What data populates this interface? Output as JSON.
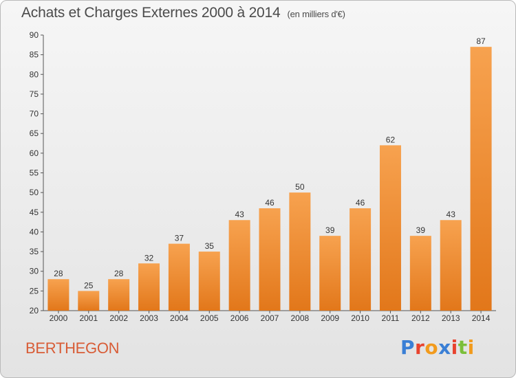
{
  "header": {
    "title": "Achats et Charges Externes 2000 à 2014",
    "unit": "(en milliers d'€)"
  },
  "footer": {
    "commune": "BERTHEGON",
    "logo": "Proxiti",
    "logo_colors": [
      "#3a7fd5",
      "#e8432e",
      "#f29b1d",
      "#3a7fd5",
      "#e8432e",
      "#7bbf3a",
      "#f29b1d"
    ]
  },
  "colors": {
    "bar_top": "#f7a24f",
    "bar_bottom": "#e2771a",
    "axis": "#555555",
    "text": "#333333",
    "commune": "#d85c36"
  },
  "chart_data": {
    "type": "bar",
    "title": "Achats et Charges Externes 2000 à 2014",
    "subtitle": "(en milliers d'€)",
    "categories": [
      "2000",
      "2001",
      "2002",
      "2003",
      "2004",
      "2005",
      "2006",
      "2007",
      "2008",
      "2009",
      "2010",
      "2011",
      "2012",
      "2013",
      "2014"
    ],
    "values": [
      28,
      25,
      28,
      32,
      37,
      35,
      43,
      46,
      50,
      39,
      46,
      62,
      39,
      43,
      87
    ],
    "ylim": [
      20,
      90
    ],
    "yticks": [
      20,
      25,
      30,
      35,
      40,
      45,
      50,
      55,
      60,
      65,
      70,
      75,
      80,
      85,
      90
    ],
    "grid": false,
    "data_labels": true
  }
}
